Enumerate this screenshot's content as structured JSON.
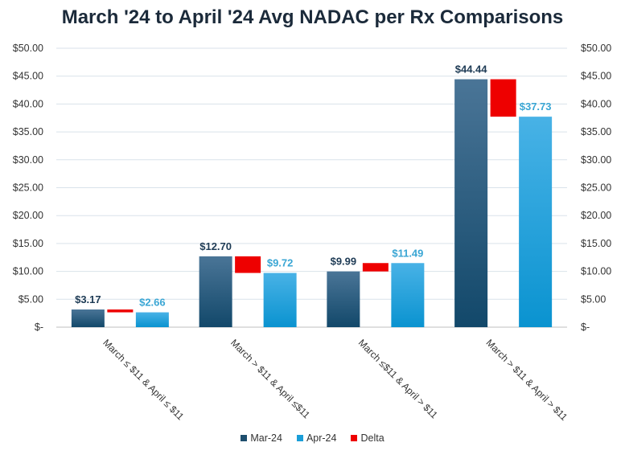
{
  "chart_data": {
    "type": "bar",
    "title": "March '24 to April '24 Avg NADAC per Rx Comparisons",
    "categories": [
      "March ≤ $11 & April ≤ $11",
      "March > $11 & April ≤$11",
      "March ≤$11 & April > $11",
      "March > $11 & April > $11"
    ],
    "series": [
      {
        "name": "Mar-24",
        "values": [
          3.17,
          12.7,
          9.99,
          44.44
        ],
        "labels": [
          "$3.17",
          "$12.70",
          "$9.99",
          "$44.44"
        ]
      },
      {
        "name": "Apr-24",
        "values": [
          2.66,
          9.72,
          11.49,
          37.73
        ],
        "labels": [
          "$2.66",
          "$9.72",
          "$11.49",
          "$37.73"
        ]
      },
      {
        "name": "Delta",
        "ranges": [
          [
            2.66,
            3.17
          ],
          [
            9.72,
            12.7
          ],
          [
            9.99,
            11.49
          ],
          [
            37.73,
            44.44
          ]
        ]
      }
    ],
    "ylim": [
      0,
      50
    ],
    "yticks": [
      0,
      5,
      10,
      15,
      20,
      25,
      30,
      35,
      40,
      45,
      50
    ],
    "ytick_labels": [
      "$-",
      "$5.00",
      "$10.00",
      "$15.00",
      "$20.00",
      "$25.00",
      "$30.00",
      "$35.00",
      "$40.00",
      "$45.00",
      "$50.00"
    ],
    "secondary_axis": true,
    "grid": true,
    "legend_position": "bottom",
    "colors": {
      "Mar-24": "#1e4e6e",
      "Apr-24": "#1a9ed8",
      "Delta": "#ee0000",
      "mar_label": "#1e3b55",
      "apr_label": "#3aa6d4"
    }
  }
}
